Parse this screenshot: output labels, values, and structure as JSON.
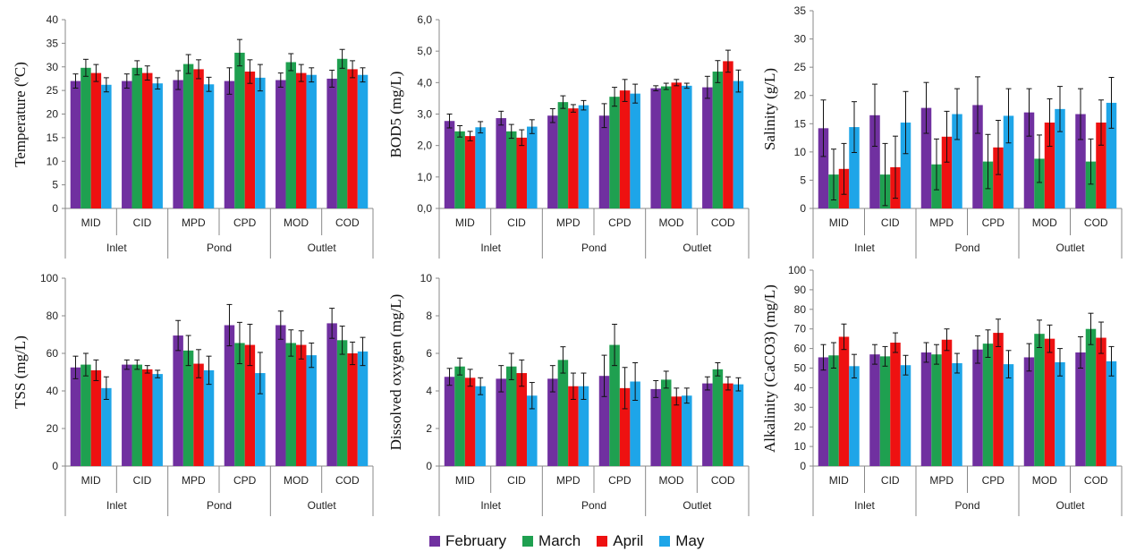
{
  "chart_data": [
    {
      "type": "bar",
      "ylabel": "Temperature (ºC)",
      "ylim": [
        0,
        40
      ],
      "yticks": [
        "0",
        "5",
        "10",
        "15",
        "20",
        "25",
        "30",
        "35",
        "40"
      ],
      "categories": [
        "MID",
        "CID",
        "MPD",
        "CPD",
        "MOD",
        "COD"
      ],
      "groups": [
        "Inlet",
        "Pond",
        "Outlet"
      ],
      "series": [
        {
          "name": "February",
          "color": "#7030a0",
          "values": [
            27.0,
            27.0,
            27.2,
            27.0,
            27.2,
            27.5
          ],
          "errors": [
            1.5,
            1.5,
            2.0,
            2.8,
            1.5,
            1.8
          ]
        },
        {
          "name": "March",
          "color": "#1fa050",
          "values": [
            29.8,
            29.8,
            30.6,
            33.0,
            31.0,
            31.7
          ],
          "errors": [
            1.8,
            1.5,
            2.0,
            2.8,
            1.8,
            2.0
          ]
        },
        {
          "name": "April",
          "color": "#ee1111",
          "values": [
            28.7,
            28.7,
            29.5,
            29.0,
            28.7,
            29.5
          ],
          "errors": [
            1.8,
            1.5,
            2.0,
            2.5,
            1.8,
            1.8
          ]
        },
        {
          "name": "May",
          "color": "#1ea5e8",
          "values": [
            26.2,
            26.5,
            26.3,
            27.7,
            28.3,
            28.3
          ],
          "errors": [
            1.5,
            1.2,
            1.5,
            2.8,
            1.5,
            1.5
          ]
        }
      ]
    },
    {
      "type": "bar",
      "ylabel": "BOD5 (mg/L)",
      "ylim": [
        0,
        6
      ],
      "yticks": [
        "0,0",
        "1,0",
        "2,0",
        "3,0",
        "4,0",
        "5,0",
        "6,0"
      ],
      "categories": [
        "MID",
        "CID",
        "MPD",
        "CPD",
        "MOD",
        "COD"
      ],
      "groups": [
        "Inlet",
        "Pond",
        "Outlet"
      ],
      "series": [
        {
          "name": "February",
          "color": "#7030a0",
          "values": [
            2.78,
            2.87,
            2.95,
            2.95,
            3.82,
            3.85
          ],
          "errors": [
            0.22,
            0.22,
            0.22,
            0.38,
            0.08,
            0.35
          ]
        },
        {
          "name": "March",
          "color": "#1fa050",
          "values": [
            2.45,
            2.45,
            3.38,
            3.55,
            3.88,
            4.35
          ],
          "errors": [
            0.18,
            0.22,
            0.2,
            0.3,
            0.1,
            0.35
          ]
        },
        {
          "name": "April",
          "color": "#ee1111",
          "values": [
            2.3,
            2.25,
            3.18,
            3.75,
            4.0,
            4.68
          ],
          "errors": [
            0.15,
            0.25,
            0.12,
            0.35,
            0.1,
            0.35
          ]
        },
        {
          "name": "May",
          "color": "#1ea5e8",
          "values": [
            2.58,
            2.6,
            3.28,
            3.65,
            3.9,
            4.05
          ],
          "errors": [
            0.18,
            0.22,
            0.15,
            0.3,
            0.08,
            0.35
          ]
        }
      ]
    },
    {
      "type": "bar",
      "ylabel": "Salinity (g/L)",
      "ylim": [
        0,
        35
      ],
      "yticks": [
        "0",
        "5",
        "10",
        "15",
        "20",
        "25",
        "30",
        "35"
      ],
      "categories": [
        "MID",
        "CID",
        "MPD",
        "CPD",
        "MOD",
        "COD"
      ],
      "groups": [
        "Inlet",
        "Pond",
        "Outlet"
      ],
      "series": [
        {
          "name": "February",
          "color": "#7030a0",
          "values": [
            14.2,
            16.5,
            17.8,
            18.3,
            17.0,
            16.7
          ],
          "errors": [
            5.0,
            5.5,
            4.5,
            5.0,
            4.2,
            4.5
          ]
        },
        {
          "name": "March",
          "color": "#1fa050",
          "values": [
            6.0,
            6.0,
            7.8,
            8.3,
            8.8,
            8.3
          ],
          "errors": [
            4.5,
            5.5,
            4.5,
            4.8,
            4.2,
            4.0
          ]
        },
        {
          "name": "April",
          "color": "#ee1111",
          "values": [
            7.0,
            7.3,
            12.7,
            10.8,
            15.2,
            15.2
          ],
          "errors": [
            4.5,
            5.5,
            4.5,
            4.8,
            4.2,
            4.0
          ]
        },
        {
          "name": "May",
          "color": "#1ea5e8",
          "values": [
            14.4,
            15.2,
            16.7,
            16.4,
            17.6,
            18.7
          ],
          "errors": [
            4.5,
            5.5,
            4.5,
            4.8,
            4.0,
            4.5
          ]
        }
      ]
    },
    {
      "type": "bar",
      "ylabel": "TSS (mg/L)",
      "ylim": [
        0,
        100
      ],
      "yticks": [
        "0",
        "20",
        "40",
        "60",
        "80",
        "100"
      ],
      "categories": [
        "MID",
        "CID",
        "MPD",
        "CPD",
        "MOD",
        "COD"
      ],
      "groups": [
        "Inlet",
        "Pond",
        "Outlet"
      ],
      "series": [
        {
          "name": "February",
          "color": "#7030a0",
          "values": [
            52.5,
            54.0,
            69.5,
            75.0,
            75.0,
            76.0
          ],
          "errors": [
            6.0,
            2.5,
            8.0,
            11.0,
            7.5,
            8.0
          ]
        },
        {
          "name": "March",
          "color": "#1fa050",
          "values": [
            54.0,
            54.0,
            61.5,
            65.5,
            65.5,
            67.0
          ],
          "errors": [
            6.0,
            2.5,
            8.0,
            11.0,
            7.0,
            7.5
          ]
        },
        {
          "name": "April",
          "color": "#ee1111",
          "values": [
            51.0,
            51.5,
            54.5,
            64.5,
            64.5,
            60.0
          ],
          "errors": [
            5.5,
            2.0,
            7.5,
            11.0,
            7.5,
            6.0
          ]
        },
        {
          "name": "May",
          "color": "#1ea5e8",
          "values": [
            41.5,
            49.0,
            51.0,
            49.5,
            59.0,
            61.0
          ],
          "errors": [
            6.0,
            2.0,
            7.5,
            11.0,
            6.5,
            7.5
          ]
        }
      ]
    },
    {
      "type": "bar",
      "ylabel": "Dissolved oxygen (mg/L)",
      "ylim": [
        0,
        10
      ],
      "yticks": [
        "0",
        "2",
        "4",
        "6",
        "8",
        "10"
      ],
      "categories": [
        "MID",
        "CID",
        "MPD",
        "CPD",
        "MOD",
        "COD"
      ],
      "groups": [
        "Inlet",
        "Pond",
        "Outlet"
      ],
      "series": [
        {
          "name": "February",
          "color": "#7030a0",
          "values": [
            4.75,
            4.65,
            4.65,
            4.8,
            4.1,
            4.4
          ],
          "errors": [
            0.45,
            0.7,
            0.7,
            1.1,
            0.45,
            0.35
          ]
        },
        {
          "name": "March",
          "color": "#1fa050",
          "values": [
            5.3,
            5.3,
            5.65,
            6.45,
            4.6,
            5.15
          ],
          "errors": [
            0.45,
            0.7,
            0.7,
            1.1,
            0.45,
            0.35
          ]
        },
        {
          "name": "April",
          "color": "#ee1111",
          "values": [
            4.7,
            4.95,
            4.25,
            4.15,
            3.7,
            4.4
          ],
          "errors": [
            0.45,
            0.7,
            0.7,
            1.1,
            0.45,
            0.35
          ]
        },
        {
          "name": "May",
          "color": "#1ea5e8",
          "values": [
            4.25,
            3.75,
            4.25,
            4.5,
            3.75,
            4.35
          ],
          "errors": [
            0.45,
            0.7,
            0.7,
            1.0,
            0.4,
            0.35
          ]
        }
      ]
    },
    {
      "type": "bar",
      "ylabel": "Alkalinity (CaCO3) (mg/L)",
      "ylim": [
        0,
        100
      ],
      "yticks": [
        "0",
        "10",
        "20",
        "30",
        "40",
        "50",
        "60",
        "70",
        "80",
        "90",
        "100"
      ],
      "categories": [
        "MID",
        "CID",
        "MPD",
        "CPD",
        "MOD",
        "COD"
      ],
      "groups": [
        "Inlet",
        "Pond",
        "Outlet"
      ],
      "series": [
        {
          "name": "February",
          "color": "#7030a0",
          "values": [
            55.5,
            57.0,
            58.0,
            59.5,
            55.5,
            58.0
          ],
          "errors": [
            6.5,
            5.0,
            5.0,
            7.0,
            7.0,
            8.0
          ]
        },
        {
          "name": "March",
          "color": "#1fa050",
          "values": [
            56.5,
            56.0,
            57.0,
            62.5,
            67.5,
            70.0
          ],
          "errors": [
            6.5,
            5.0,
            5.0,
            7.0,
            7.0,
            8.0
          ]
        },
        {
          "name": "April",
          "color": "#ee1111",
          "values": [
            66.0,
            63.0,
            64.5,
            68.0,
            65.0,
            65.5
          ],
          "errors": [
            6.5,
            5.0,
            5.5,
            7.0,
            7.0,
            8.0
          ]
        },
        {
          "name": "May",
          "color": "#1ea5e8",
          "values": [
            51.0,
            51.5,
            52.5,
            52.0,
            53.0,
            53.5
          ],
          "errors": [
            6.0,
            5.0,
            5.0,
            7.0,
            7.0,
            7.5
          ]
        }
      ]
    }
  ],
  "legend": [
    {
      "label": "February",
      "color": "#7030a0"
    },
    {
      "label": "March",
      "color": "#1fa050"
    },
    {
      "label": "April",
      "color": "#ee1111"
    },
    {
      "label": "May",
      "color": "#1ea5e8"
    }
  ]
}
